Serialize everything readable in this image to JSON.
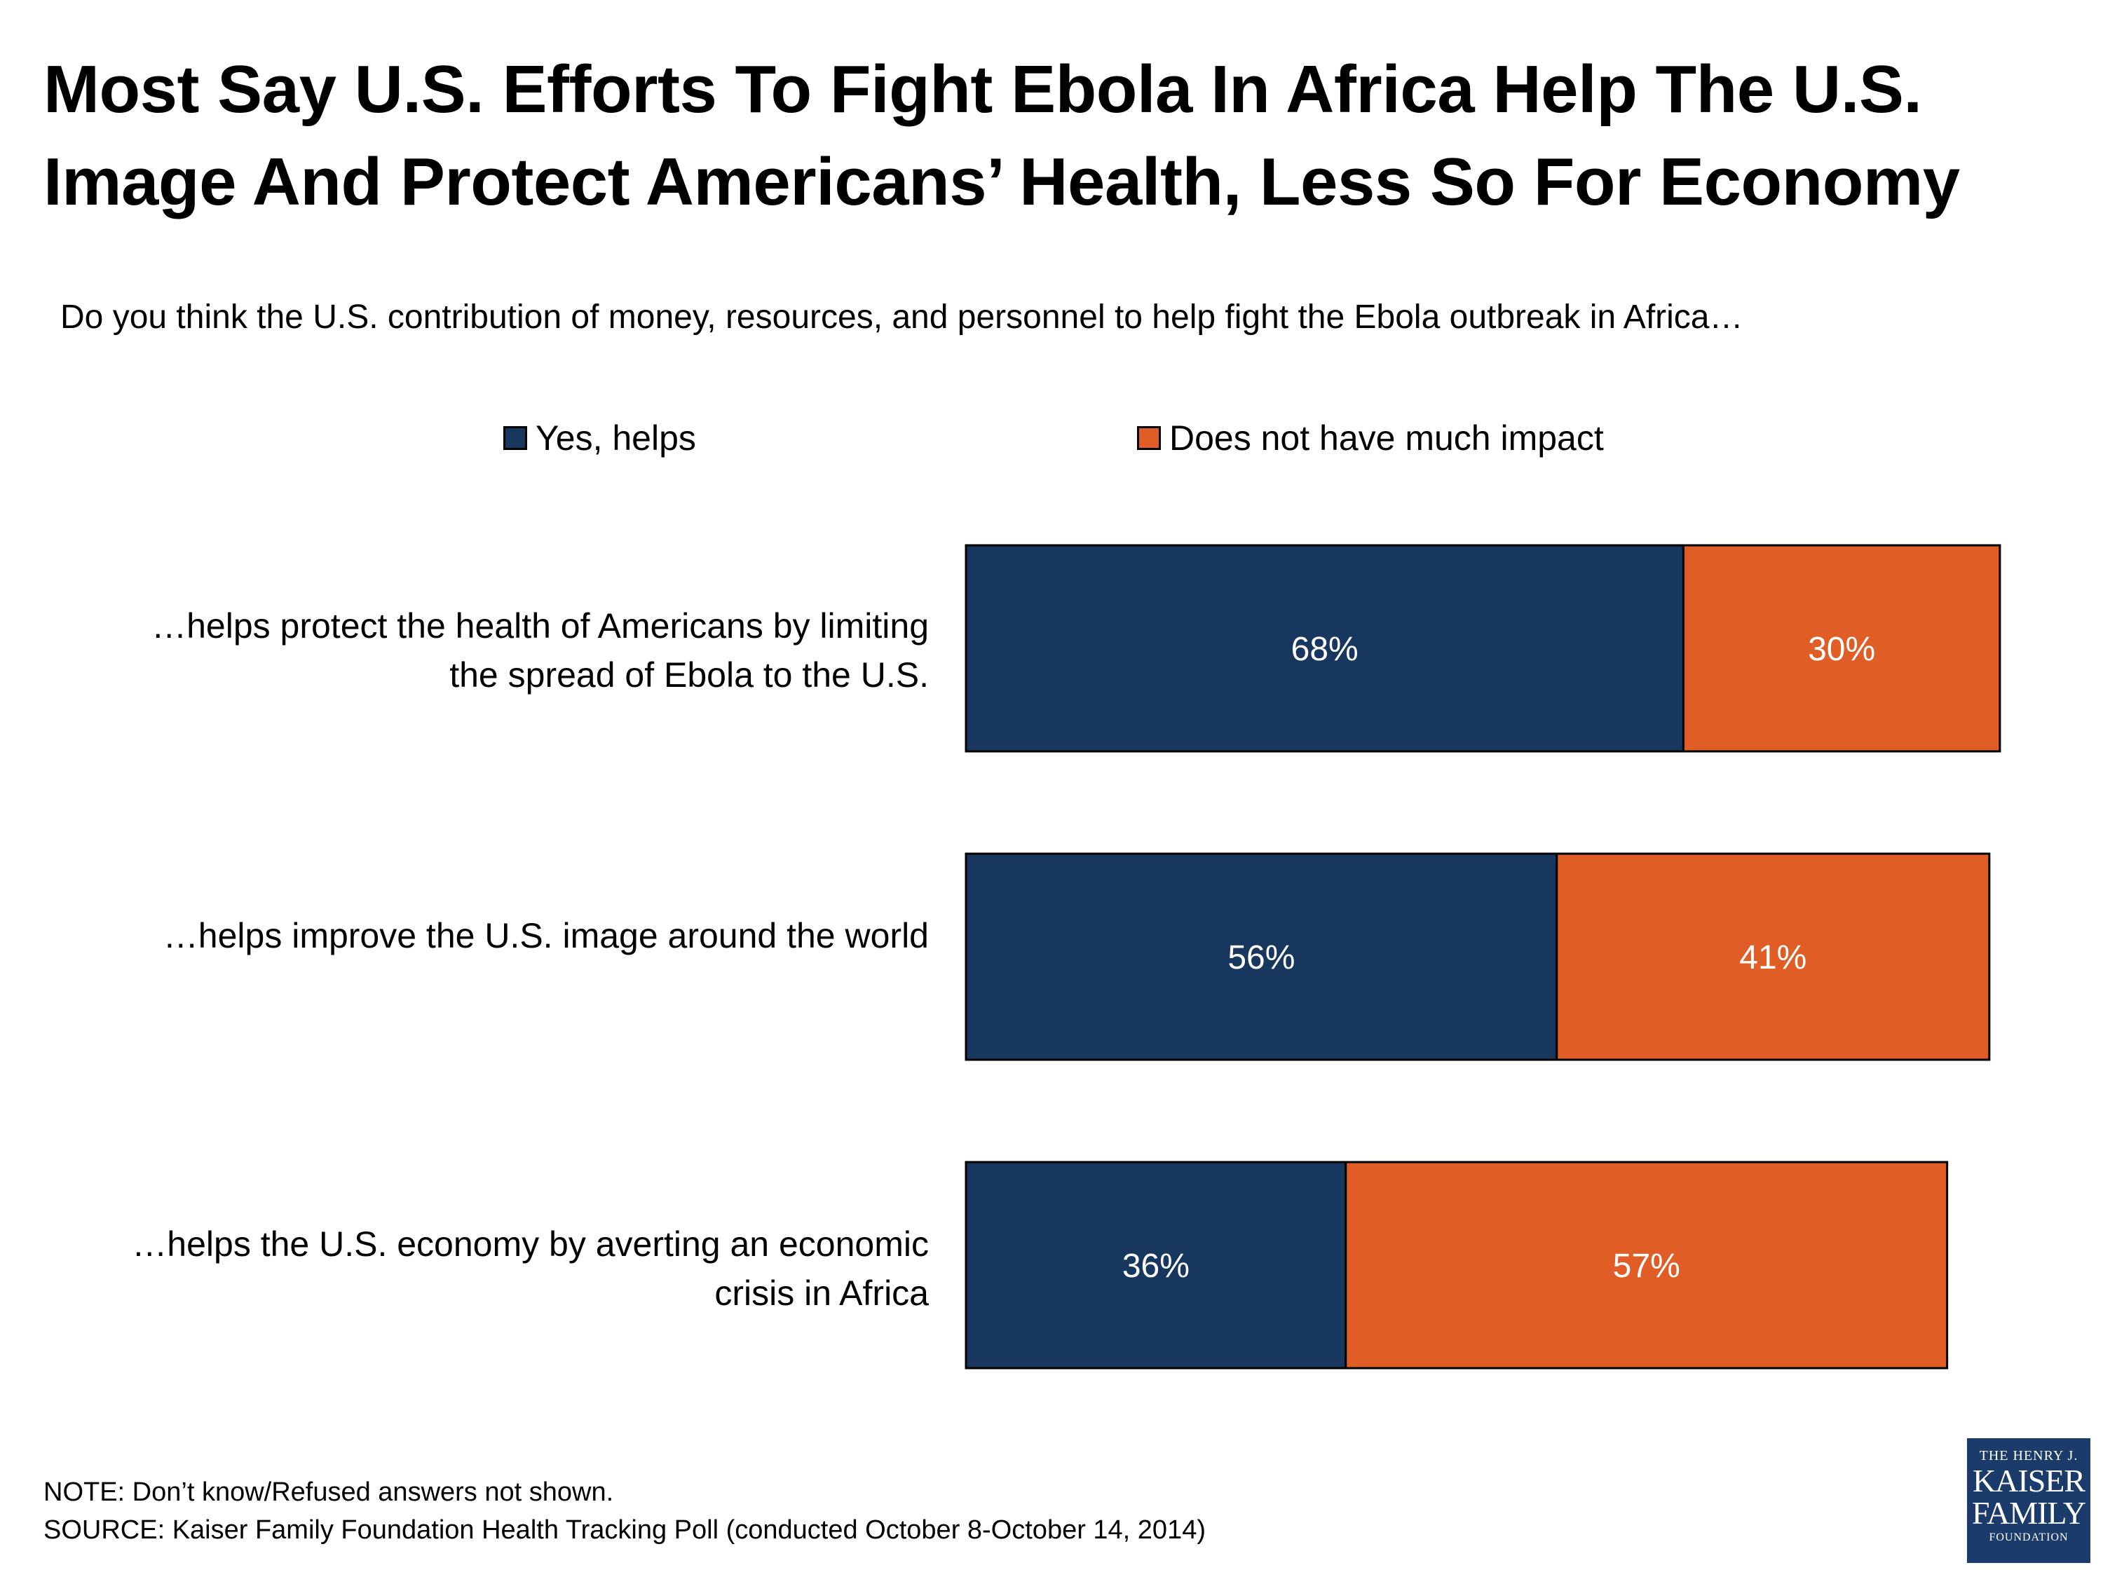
{
  "header": {
    "title_line1": "Most Say U.S. Efforts To Fight Ebola In Africa Help The U.S.",
    "title_line2": "Image And Protect Americans’ Health, Less So For Economy",
    "subtitle": "Do you think the U.S. contribution of money, resources, and personnel to help fight the Ebola outbreak in Africa…"
  },
  "chart_data": {
    "type": "bar",
    "orientation": "horizontal",
    "stacked": true,
    "title": "Most Say U.S. Efforts To Fight Ebola In Africa Help The U.S. Image And Protect Americans’ Health, Less So For Economy",
    "question": "Do you think the U.S. contribution of money, resources, and personnel to help fight the Ebola outbreak in Africa…",
    "categories": [
      "…helps protect the health of Americans by limiting the spread of Ebola to the U.S.",
      "…helps improve the U.S. image around the world",
      "…helps the U.S. economy by averting an economic crisis in Africa"
    ],
    "category_lines": [
      [
        "…helps protect the health of Americans by limiting",
        "the spread of Ebola to the U.S."
      ],
      [
        "…helps improve the U.S. image around the world"
      ],
      [
        "…helps the U.S. economy by averting an economic",
        "crisis in Africa"
      ]
    ],
    "series": [
      {
        "name": "Yes, helps",
        "color": "#17375e",
        "values": [
          68,
          56,
          36
        ]
      },
      {
        "name": "Does not have much impact",
        "color": "#e05e25",
        "values": [
          30,
          41,
          57
        ]
      }
    ],
    "data_labels": [
      [
        "68%",
        "56%",
        "36%"
      ],
      [
        "30%",
        "41%",
        "57%"
      ]
    ],
    "xlim": [
      0,
      100
    ],
    "unit": "%",
    "legend_position": "top",
    "grid": false
  },
  "footer": {
    "note": "NOTE: Don’t know/Refused answers not shown.",
    "source": "SOURCE: Kaiser Family Foundation Health Tracking Poll (conducted October 8-October 14, 2014)"
  },
  "logo": {
    "line1": "THE HENRY J.",
    "line2": "KAISER",
    "line3": "FAMILY",
    "line4": "FOUNDATION"
  }
}
